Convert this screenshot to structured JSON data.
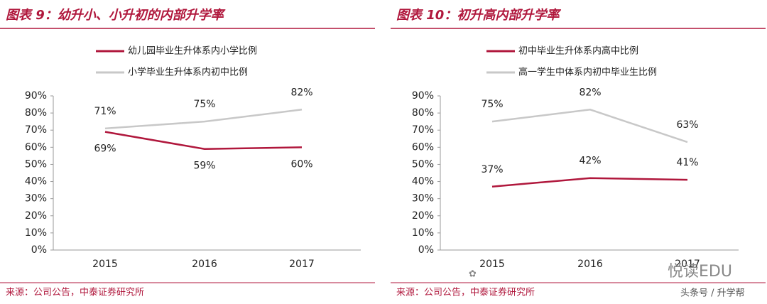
{
  "chart_data": [
    {
      "type": "line",
      "title": "图表 9：幼升小、小升初的内部升学率",
      "categories": [
        "2015",
        "2016",
        "2017"
      ],
      "series": [
        {
          "name": "幼儿园毕业生升体系内小学比例",
          "color": "#b0173c",
          "values": [
            69,
            59,
            60
          ],
          "value_labels": [
            "69%",
            "59%",
            "60%"
          ]
        },
        {
          "name": "小学毕业生升体系内初中比例",
          "color": "#c8c8c8",
          "values": [
            71,
            75,
            82
          ],
          "value_labels": [
            "71%",
            "75%",
            "82%"
          ]
        }
      ],
      "ylim": [
        0,
        90
      ],
      "yticks": [
        {
          "value": 0,
          "label": "0%"
        },
        {
          "value": 10,
          "label": "10%"
        },
        {
          "value": 20,
          "label": "20%"
        },
        {
          "value": 30,
          "label": "30%"
        },
        {
          "value": 40,
          "label": "40%"
        },
        {
          "value": 50,
          "label": "50%"
        },
        {
          "value": 60,
          "label": "60%"
        },
        {
          "value": 70,
          "label": "70%"
        },
        {
          "value": 80,
          "label": "80%"
        },
        {
          "value": 90,
          "label": "90%"
        }
      ],
      "source": "来源：公司公告，中泰证券研究所"
    },
    {
      "type": "line",
      "title": "图表 10：初升高内部升学率",
      "categories": [
        "2015",
        "2016",
        "2017"
      ],
      "series": [
        {
          "name": "初中毕业生升体系内高中比例",
          "color": "#b0173c",
          "values": [
            37,
            42,
            41
          ],
          "value_labels": [
            "37%",
            "42%",
            "41%"
          ]
        },
        {
          "name": "高一学生中体系内初中毕业生比例",
          "color": "#c8c8c8",
          "values": [
            75,
            82,
            63
          ],
          "value_labels": [
            "75%",
            "82%",
            "63%"
          ]
        }
      ],
      "ylim": [
        0,
        90
      ],
      "yticks": [
        {
          "value": 0,
          "label": "0%"
        },
        {
          "value": 10,
          "label": "10%"
        },
        {
          "value": 20,
          "label": "20%"
        },
        {
          "value": 30,
          "label": "30%"
        },
        {
          "value": 40,
          "label": "40%"
        },
        {
          "value": 50,
          "label": "50%"
        },
        {
          "value": 60,
          "label": "60%"
        },
        {
          "value": 70,
          "label": "70%"
        },
        {
          "value": 80,
          "label": "80%"
        },
        {
          "value": 90,
          "label": "90%"
        }
      ],
      "source": "来源：公司公告，中泰证券研究所"
    }
  ],
  "watermark": {
    "logo": "悦读EDU",
    "account": "头条号 / 升学帮"
  }
}
